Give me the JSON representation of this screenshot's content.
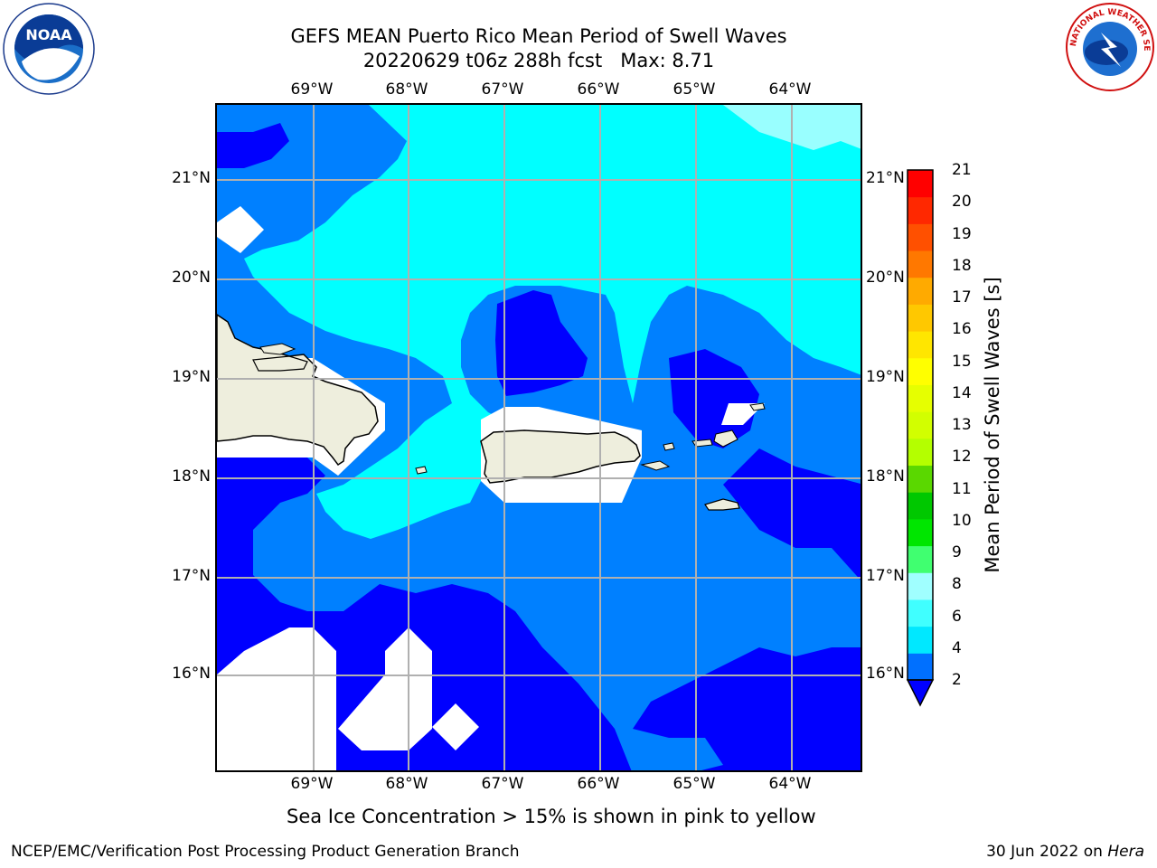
{
  "title": {
    "line1": "GEFS MEAN Puerto Rico Mean Period of Swell Waves",
    "line2": "20220629 t06z 288h fcst   Max: 8.71"
  },
  "logos": {
    "left": {
      "icon": "noaa-logo-icon",
      "text": "NOAA"
    },
    "right": {
      "icon": "nws-logo-icon",
      "text": "NATIONAL WEATHER SERVICE"
    }
  },
  "map": {
    "longitude_labels": [
      "69°W",
      "68°W",
      "67°W",
      "66°W",
      "65°W",
      "64°W"
    ],
    "latitude_labels": [
      "21°N",
      "20°N",
      "19°N",
      "18°N",
      "17°N",
      "16°N"
    ],
    "colors": {
      "band_2_4": "#0000ff",
      "band_4_6": "#0080ff",
      "band_6_8": "#00ffff",
      "band_8_9": "#99ffff",
      "land": "#eeeedd",
      "no_data": "#ffffff",
      "grid": "#b0b0b0"
    }
  },
  "colorbar": {
    "label": "Mean Period of Swell Waves [s]",
    "ticks": [
      "21",
      "20",
      "19",
      "18",
      "17",
      "16",
      "15",
      "14",
      "13",
      "12",
      "11",
      "10",
      "9",
      "8",
      "6",
      "4",
      "2"
    ],
    "colors_bottom_to_top": [
      "#0070ff",
      "#00e8ff",
      "#40ffff",
      "#a0ffff",
      "#40ff70",
      "#00e600",
      "#00c800",
      "#5ad800",
      "#b4ff00",
      "#d2ff00",
      "#e6ff00",
      "#ffff00",
      "#ffe600",
      "#ffc800",
      "#ffaa00",
      "#ff7800",
      "#ff5000",
      "#ff2800",
      "#ff0000"
    ],
    "extend_color": "#0000ff"
  },
  "footer": {
    "sea_ice_note": "Sea Ice Concentration > 15% is shown in pink to yellow",
    "left": "NCEP/EMC/Verification Post Processing Product Generation Branch",
    "date": "30 Jun 2022 on ",
    "host": "Hera"
  }
}
